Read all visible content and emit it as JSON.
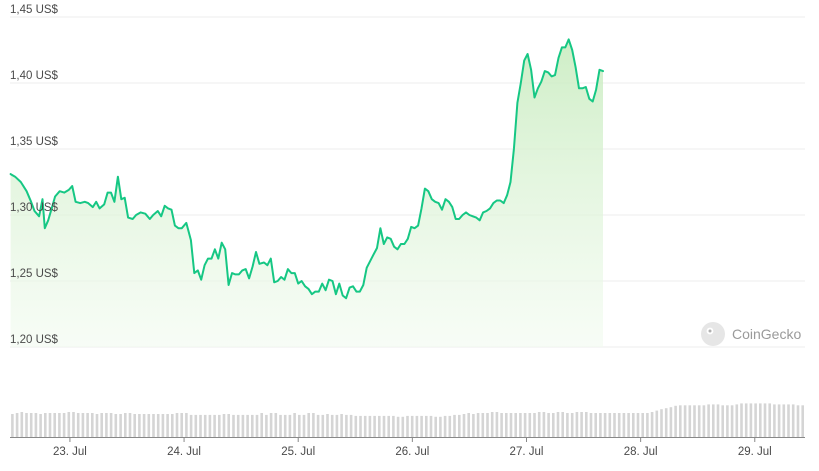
{
  "chart_data": {
    "type": "area",
    "y_tick_labels": [
      "1,45 US$",
      "1,40 US$",
      "1,35 US$",
      "1,30 US$",
      "1,25 US$",
      "1,20 US$"
    ],
    "y_ticks": [
      1.45,
      1.4,
      1.35,
      1.3,
      1.25,
      1.2
    ],
    "ylim": [
      1.2,
      1.45
    ],
    "x_tick_labels": [
      "23. Jul",
      "24. Jul",
      "25. Jul",
      "26. Jul",
      "27. Jul",
      "28. Jul",
      "29. Jul"
    ],
    "x_ticks_day": [
      1,
      2,
      3,
      4,
      5,
      6,
      7
    ],
    "xlim_day": [
      0.475,
      7.44
    ],
    "grid": true,
    "colors": {
      "line": "#16c784",
      "area_top": "#c9ecc0",
      "area_bottom": "#f2fbf0",
      "grid": "#ececec",
      "volume": "#d5d5d5",
      "axis": "#888888"
    },
    "watermark": "CoinGecko",
    "price_series": [
      [
        0.48,
        1.331
      ],
      [
        0.52,
        1.329
      ],
      [
        0.57,
        1.325
      ],
      [
        0.62,
        1.318
      ],
      [
        0.66,
        1.31
      ],
      [
        0.69,
        1.303
      ],
      [
        0.73,
        1.299
      ],
      [
        0.76,
        1.312
      ],
      [
        0.78,
        1.29
      ],
      [
        0.81,
        1.296
      ],
      [
        0.84,
        1.305
      ],
      [
        0.87,
        1.314
      ],
      [
        0.91,
        1.318
      ],
      [
        0.95,
        1.317
      ],
      [
        0.99,
        1.319
      ],
      [
        1.02,
        1.322
      ],
      [
        1.05,
        1.31
      ],
      [
        1.09,
        1.309
      ],
      [
        1.13,
        1.31
      ],
      [
        1.16,
        1.309
      ],
      [
        1.2,
        1.306
      ],
      [
        1.23,
        1.31
      ],
      [
        1.26,
        1.305
      ],
      [
        1.3,
        1.308
      ],
      [
        1.33,
        1.317
      ],
      [
        1.36,
        1.317
      ],
      [
        1.39,
        1.31
      ],
      [
        1.42,
        1.329
      ],
      [
        1.45,
        1.312
      ],
      [
        1.48,
        1.313
      ],
      [
        1.51,
        1.298
      ],
      [
        1.55,
        1.297
      ],
      [
        1.58,
        1.3
      ],
      [
        1.62,
        1.302
      ],
      [
        1.66,
        1.301
      ],
      [
        1.7,
        1.297
      ],
      [
        1.73,
        1.3
      ],
      [
        1.77,
        1.303
      ],
      [
        1.8,
        1.299
      ],
      [
        1.83,
        1.307
      ],
      [
        1.86,
        1.305
      ],
      [
        1.89,
        1.304
      ],
      [
        1.92,
        1.292
      ],
      [
        1.95,
        1.29
      ],
      [
        1.98,
        1.29
      ],
      [
        2.02,
        1.294
      ],
      [
        2.06,
        1.281
      ],
      [
        2.09,
        1.256
      ],
      [
        2.12,
        1.258
      ],
      [
        2.15,
        1.251
      ],
      [
        2.18,
        1.262
      ],
      [
        2.21,
        1.267
      ],
      [
        2.24,
        1.267
      ],
      [
        2.27,
        1.274
      ],
      [
        2.3,
        1.267
      ],
      [
        2.33,
        1.279
      ],
      [
        2.36,
        1.274
      ],
      [
        2.39,
        1.247
      ],
      [
        2.42,
        1.256
      ],
      [
        2.45,
        1.255
      ],
      [
        2.48,
        1.255
      ],
      [
        2.51,
        1.258
      ],
      [
        2.54,
        1.259
      ],
      [
        2.57,
        1.252
      ],
      [
        2.6,
        1.261
      ],
      [
        2.63,
        1.272
      ],
      [
        2.66,
        1.263
      ],
      [
        2.7,
        1.264
      ],
      [
        2.73,
        1.262
      ],
      [
        2.76,
        1.267
      ],
      [
        2.79,
        1.249
      ],
      [
        2.82,
        1.25
      ],
      [
        2.85,
        1.253
      ],
      [
        2.88,
        1.251
      ],
      [
        2.91,
        1.259
      ],
      [
        2.94,
        1.256
      ],
      [
        2.97,
        1.256
      ],
      [
        3.0,
        1.248
      ],
      [
        3.03,
        1.25
      ],
      [
        3.06,
        1.246
      ],
      [
        3.09,
        1.244
      ],
      [
        3.12,
        1.24
      ],
      [
        3.15,
        1.242
      ],
      [
        3.18,
        1.242
      ],
      [
        3.21,
        1.248
      ],
      [
        3.24,
        1.243
      ],
      [
        3.27,
        1.251
      ],
      [
        3.3,
        1.25
      ],
      [
        3.33,
        1.24
      ],
      [
        3.36,
        1.248
      ],
      [
        3.39,
        1.239
      ],
      [
        3.42,
        1.237
      ],
      [
        3.45,
        1.245
      ],
      [
        3.48,
        1.246
      ],
      [
        3.51,
        1.242
      ],
      [
        3.54,
        1.242
      ],
      [
        3.57,
        1.247
      ],
      [
        3.6,
        1.26
      ],
      [
        3.63,
        1.265
      ],
      [
        3.66,
        1.27
      ],
      [
        3.69,
        1.275
      ],
      [
        3.72,
        1.29
      ],
      [
        3.75,
        1.278
      ],
      [
        3.78,
        1.283
      ],
      [
        3.81,
        1.282
      ],
      [
        3.84,
        1.276
      ],
      [
        3.87,
        1.274
      ],
      [
        3.9,
        1.278
      ],
      [
        3.93,
        1.278
      ],
      [
        3.96,
        1.282
      ],
      [
        3.99,
        1.291
      ],
      [
        4.02,
        1.29
      ],
      [
        4.05,
        1.292
      ],
      [
        4.08,
        1.305
      ],
      [
        4.11,
        1.32
      ],
      [
        4.14,
        1.318
      ],
      [
        4.17,
        1.312
      ],
      [
        4.2,
        1.31
      ],
      [
        4.23,
        1.309
      ],
      [
        4.26,
        1.304
      ],
      [
        4.29,
        1.312
      ],
      [
        4.32,
        1.31
      ],
      [
        4.35,
        1.306
      ],
      [
        4.38,
        1.297
      ],
      [
        4.41,
        1.297
      ],
      [
        4.44,
        1.3
      ],
      [
        4.47,
        1.302
      ],
      [
        4.5,
        1.3
      ],
      [
        4.53,
        1.299
      ],
      [
        4.56,
        1.298
      ],
      [
        4.59,
        1.296
      ],
      [
        4.62,
        1.302
      ],
      [
        4.65,
        1.303
      ],
      [
        4.68,
        1.305
      ],
      [
        4.71,
        1.309
      ],
      [
        4.74,
        1.311
      ],
      [
        4.77,
        1.311
      ],
      [
        4.8,
        1.309
      ],
      [
        4.83,
        1.315
      ],
      [
        4.86,
        1.325
      ],
      [
        4.89,
        1.35
      ],
      [
        4.92,
        1.385
      ],
      [
        4.95,
        1.4
      ],
      [
        4.98,
        1.417
      ],
      [
        5.01,
        1.422
      ],
      [
        5.04,
        1.41
      ],
      [
        5.07,
        1.389
      ],
      [
        5.1,
        1.396
      ],
      [
        5.13,
        1.401
      ],
      [
        5.16,
        1.409
      ],
      [
        5.19,
        1.408
      ],
      [
        5.22,
        1.405
      ],
      [
        5.25,
        1.406
      ],
      [
        5.28,
        1.419
      ],
      [
        5.31,
        1.427
      ],
      [
        5.34,
        1.427
      ],
      [
        5.37,
        1.433
      ],
      [
        5.4,
        1.425
      ],
      [
        5.43,
        1.412
      ],
      [
        5.46,
        1.396
      ],
      [
        5.49,
        1.396
      ],
      [
        5.52,
        1.397
      ],
      [
        5.55,
        1.388
      ],
      [
        5.58,
        1.386
      ],
      [
        5.61,
        1.395
      ],
      [
        5.64,
        1.41
      ],
      [
        5.67,
        1.409
      ]
    ],
    "volume_relative": [
      0.48,
      0.5,
      0.52,
      0.5,
      0.5,
      0.5,
      0.48,
      0.5,
      0.5,
      0.5,
      0.5,
      0.5,
      0.52,
      0.52,
      0.5,
      0.5,
      0.5,
      0.5,
      0.48,
      0.5,
      0.5,
      0.5,
      0.48,
      0.48,
      0.5,
      0.5,
      0.48,
      0.48,
      0.48,
      0.48,
      0.48,
      0.48,
      0.48,
      0.48,
      0.48,
      0.5,
      0.5,
      0.5,
      0.46,
      0.46,
      0.46,
      0.46,
      0.46,
      0.46,
      0.46,
      0.48,
      0.48,
      0.46,
      0.46,
      0.46,
      0.46,
      0.46,
      0.46,
      0.5,
      0.46,
      0.5,
      0.5,
      0.46,
      0.46,
      0.46,
      0.5,
      0.46,
      0.46,
      0.5,
      0.5,
      0.46,
      0.46,
      0.48,
      0.46,
      0.46,
      0.48,
      0.46,
      0.46,
      0.44,
      0.44,
      0.44,
      0.44,
      0.44,
      0.44,
      0.44,
      0.44,
      0.44,
      0.42,
      0.42,
      0.44,
      0.44,
      0.44,
      0.44,
      0.44,
      0.44,
      0.42,
      0.42,
      0.44,
      0.44,
      0.46,
      0.46,
      0.48,
      0.5,
      0.48,
      0.5,
      0.5,
      0.5,
      0.52,
      0.52,
      0.5,
      0.5,
      0.5,
      0.5,
      0.5,
      0.5,
      0.5,
      0.5,
      0.52,
      0.52,
      0.5,
      0.5,
      0.52,
      0.52,
      0.5,
      0.5,
      0.52,
      0.52,
      0.52,
      0.5,
      0.5,
      0.5,
      0.5,
      0.5,
      0.5,
      0.5,
      0.5,
      0.5,
      0.5,
      0.5,
      0.5,
      0.5,
      0.52,
      0.55,
      0.58,
      0.6,
      0.62,
      0.65,
      0.66,
      0.66,
      0.66,
      0.66,
      0.66,
      0.66,
      0.68,
      0.68,
      0.68,
      0.66,
      0.66,
      0.66,
      0.68,
      0.7,
      0.7,
      0.7,
      0.7,
      0.7,
      0.7,
      0.7,
      0.68,
      0.68,
      0.68,
      0.68,
      0.68,
      0.66,
      0.66
    ]
  }
}
